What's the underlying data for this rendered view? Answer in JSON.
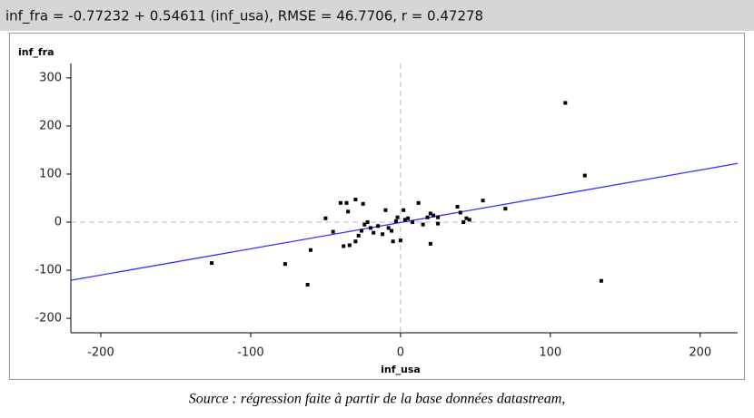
{
  "chart_data": {
    "type": "scatter",
    "title": "inf_fra = -0.77232 + 0.54611 (inf_usa), RMSE = 46.7706, r = 0.47278",
    "x_label": "inf_usa",
    "y_label": "inf_fra",
    "caption": "Source : régression faite à partir de la base données datastream,",
    "color": "#000000",
    "fit_color": "#3333ff",
    "fit_line": {
      "intercept": -0.77232,
      "slope": 0.54611
    },
    "xlim": [
      -220,
      225
    ],
    "ylim": [
      -230,
      330
    ],
    "xticks": [
      -200,
      -100,
      0,
      100,
      200
    ],
    "yticks": [
      -200,
      -100,
      0,
      100,
      200,
      300
    ],
    "x": [
      -126,
      -77,
      -62,
      -60,
      -50,
      -45,
      -40,
      -36,
      -30,
      -25,
      -35,
      -38,
      -34,
      -30,
      -28,
      -26,
      -24,
      -22,
      -20,
      -18,
      -15,
      -12,
      -10,
      -8,
      -6,
      -5,
      -3,
      -2,
      0,
      2,
      3,
      5,
      8,
      12,
      15,
      18,
      20,
      20,
      22,
      25,
      25,
      38,
      40,
      42,
      44,
      46,
      55,
      70,
      110,
      123,
      134
    ],
    "values": [
      -85,
      -87,
      -130,
      -58,
      8,
      -20,
      40,
      40,
      47,
      38,
      22,
      -50,
      -48,
      -40,
      -28,
      -18,
      -5,
      0,
      -12,
      -22,
      -8,
      -25,
      25,
      -12,
      -18,
      -40,
      2,
      10,
      -38,
      25,
      5,
      8,
      0,
      40,
      -5,
      10,
      18,
      -45,
      14,
      -3,
      10,
      32,
      20,
      0,
      8,
      5,
      45,
      28,
      248,
      97,
      -122
    ]
  }
}
